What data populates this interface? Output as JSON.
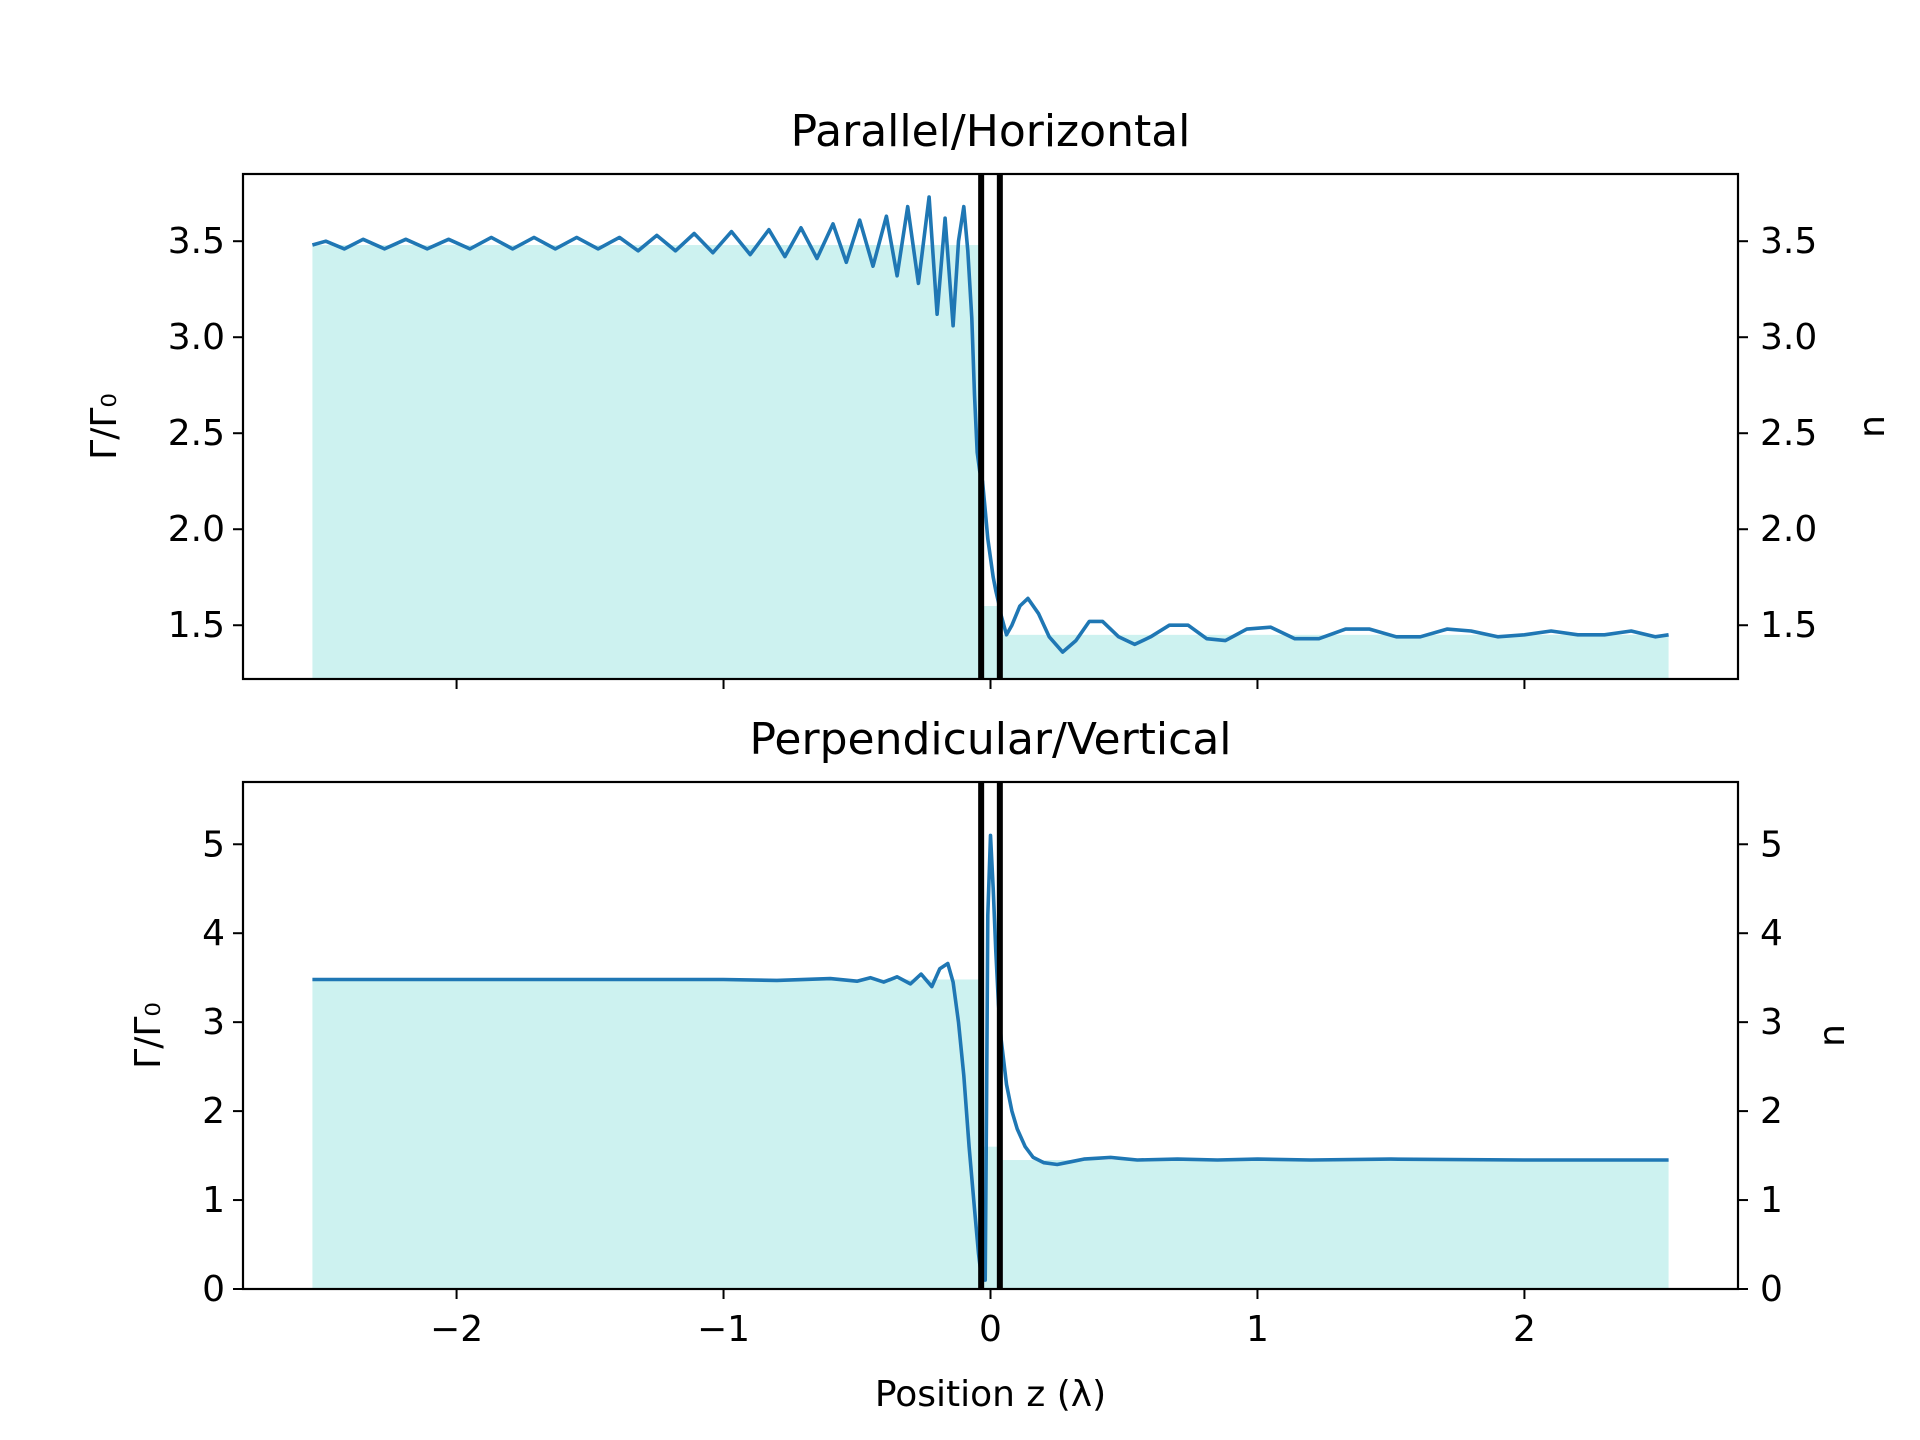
{
  "chart_data": [
    {
      "type": "area",
      "title": "Parallel/Horizontal",
      "ylabel": "Γ/Γ₀",
      "ylabel_right": "n",
      "xlabel": "",
      "xlim": [
        -2.8,
        2.8
      ],
      "ylim": [
        1.22,
        3.85
      ],
      "yticks": [
        1.5,
        2.0,
        2.5,
        3.0,
        3.5
      ],
      "ytick_labels": [
        "1.5",
        "2.0",
        "2.5",
        "3.0",
        "3.5"
      ],
      "xticks": [
        -2,
        -1,
        0,
        1,
        2
      ],
      "xtick_labels": [],
      "grid": false,
      "legend": "none",
      "interfaces_x": [
        -0.035,
        0.035
      ],
      "refractive_index": [
        {
          "x_start": -2.54,
          "x_end": -0.035,
          "n": 3.48
        },
        {
          "x_start": -0.035,
          "x_end": 0.035,
          "n": 1.6
        },
        {
          "x_start": 0.035,
          "x_end": 2.54,
          "n": 1.45
        }
      ],
      "series": [
        {
          "color": "#1f77b4",
          "x": [
            -2.54,
            -2.49,
            -2.42,
            -2.35,
            -2.27,
            -2.19,
            -2.11,
            -2.03,
            -1.95,
            -1.87,
            -1.79,
            -1.71,
            -1.63,
            -1.55,
            -1.47,
            -1.39,
            -1.32,
            -1.25,
            -1.18,
            -1.11,
            -1.04,
            -0.97,
            -0.9,
            -0.83,
            -0.77,
            -0.71,
            -0.65,
            -0.59,
            -0.54,
            -0.49,
            -0.44,
            -0.39,
            -0.35,
            -0.31,
            -0.27,
            -0.23,
            -0.2,
            -0.17,
            -0.14,
            -0.12,
            -0.1,
            -0.085,
            -0.07,
            -0.06,
            -0.05,
            -0.04,
            -0.03,
            -0.02,
            -0.01,
            0.0,
            0.01,
            0.02,
            0.03,
            0.04,
            0.06,
            0.08,
            0.11,
            0.14,
            0.18,
            0.22,
            0.27,
            0.32,
            0.37,
            0.42,
            0.48,
            0.54,
            0.6,
            0.67,
            0.74,
            0.81,
            0.88,
            0.96,
            1.05,
            1.14,
            1.23,
            1.33,
            1.42,
            1.52,
            1.61,
            1.71,
            1.8,
            1.9,
            2.0,
            2.1,
            2.2,
            2.3,
            2.4,
            2.49,
            2.54
          ],
          "y": [
            3.48,
            3.5,
            3.46,
            3.51,
            3.46,
            3.51,
            3.46,
            3.51,
            3.46,
            3.52,
            3.46,
            3.52,
            3.46,
            3.52,
            3.46,
            3.52,
            3.45,
            3.53,
            3.45,
            3.54,
            3.44,
            3.55,
            3.43,
            3.56,
            3.42,
            3.57,
            3.41,
            3.59,
            3.39,
            3.61,
            3.37,
            3.63,
            3.32,
            3.68,
            3.28,
            3.73,
            3.12,
            3.62,
            3.06,
            3.5,
            3.68,
            3.45,
            3.1,
            2.7,
            2.4,
            2.3,
            2.25,
            2.1,
            1.95,
            1.85,
            1.75,
            1.68,
            1.62,
            1.55,
            1.45,
            1.5,
            1.6,
            1.64,
            1.56,
            1.44,
            1.36,
            1.42,
            1.52,
            1.52,
            1.44,
            1.4,
            1.44,
            1.5,
            1.5,
            1.43,
            1.42,
            1.48,
            1.49,
            1.43,
            1.43,
            1.48,
            1.48,
            1.44,
            1.44,
            1.48,
            1.47,
            1.44,
            1.45,
            1.47,
            1.45,
            1.45,
            1.47,
            1.44,
            1.45
          ]
        }
      ]
    },
    {
      "type": "area",
      "title": "Perpendicular/Vertical",
      "ylabel": "Γ/Γ₀",
      "ylabel_right": "n",
      "xlabel": "Position z (λ)",
      "xlim": [
        -2.8,
        2.8
      ],
      "ylim": [
        0,
        5.7
      ],
      "yticks": [
        0,
        1,
        2,
        3,
        4,
        5
      ],
      "ytick_labels": [
        "0",
        "1",
        "2",
        "3",
        "4",
        "5"
      ],
      "xticks": [
        -2,
        -1,
        0,
        1,
        2
      ],
      "xtick_labels": [
        "−2",
        "−1",
        "0",
        "1",
        "2"
      ],
      "grid": false,
      "legend": "none",
      "interfaces_x": [
        -0.035,
        0.035
      ],
      "refractive_index": [
        {
          "x_start": -2.54,
          "x_end": -0.035,
          "n": 3.48
        },
        {
          "x_start": -0.035,
          "x_end": 0.035,
          "n": 1.6
        },
        {
          "x_start": 0.035,
          "x_end": 2.54,
          "n": 1.45
        }
      ],
      "series": [
        {
          "color": "#1f77b4",
          "x": [
            -2.54,
            -2.0,
            -1.5,
            -1.0,
            -0.8,
            -0.6,
            -0.5,
            -0.45,
            -0.4,
            -0.35,
            -0.3,
            -0.26,
            -0.22,
            -0.19,
            -0.16,
            -0.14,
            -0.12,
            -0.1,
            -0.08,
            -0.06,
            -0.045,
            -0.035,
            -0.03,
            -0.025,
            -0.02,
            -0.015,
            -0.01,
            0.0,
            0.01,
            0.02,
            0.03,
            0.04,
            0.06,
            0.08,
            0.1,
            0.13,
            0.16,
            0.2,
            0.25,
            0.3,
            0.35,
            0.45,
            0.55,
            0.7,
            0.85,
            1.0,
            1.2,
            1.5,
            2.0,
            2.54
          ],
          "y": [
            3.48,
            3.48,
            3.48,
            3.48,
            3.47,
            3.49,
            3.46,
            3.5,
            3.45,
            3.51,
            3.43,
            3.54,
            3.4,
            3.6,
            3.66,
            3.45,
            3.0,
            2.4,
            1.6,
            0.9,
            0.4,
            0.15,
            0.1,
            0.1,
            0.1,
            2.0,
            4.2,
            5.1,
            4.5,
            3.8,
            3.2,
            2.8,
            2.3,
            2.0,
            1.8,
            1.6,
            1.48,
            1.42,
            1.4,
            1.43,
            1.46,
            1.48,
            1.45,
            1.46,
            1.45,
            1.46,
            1.45,
            1.46,
            1.45,
            1.45
          ]
        }
      ]
    }
  ]
}
